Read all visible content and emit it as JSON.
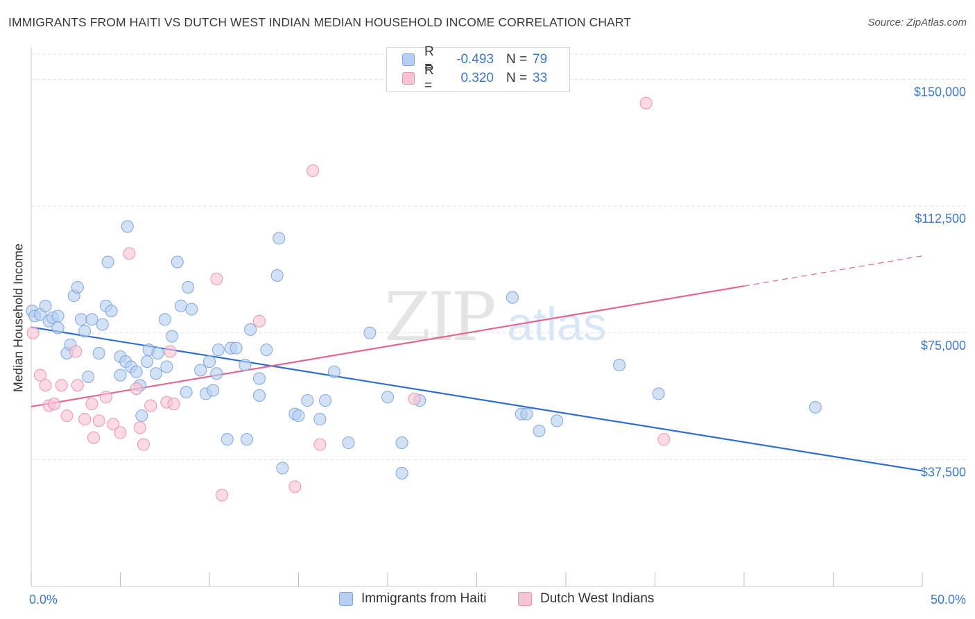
{
  "title": "IMMIGRANTS FROM HAITI VS DUTCH WEST INDIAN MEDIAN HOUSEHOLD INCOME CORRELATION CHART",
  "source": "Source: ZipAtlas.com",
  "watermark": {
    "zip": "ZIP",
    "atlas": "atlas"
  },
  "legend": {
    "rows": [
      {
        "r_label": "R =",
        "r_value": "-0.493",
        "n_label": "N =",
        "n_value": "79"
      },
      {
        "r_label": "R =",
        "r_value": "0.320",
        "n_label": "N =",
        "n_value": "33"
      }
    ]
  },
  "colors": {
    "blue_fill": "#b7cff0",
    "blue_stroke": "#7ea6de",
    "blue_line": "#2f6fcc",
    "pink_fill": "#f8c4d4",
    "pink_stroke": "#ec93b0",
    "pink_line": "#e26592",
    "tick_color": "#3f78c9",
    "grid": "#dcdcdc"
  },
  "chart_data": {
    "type": "scatter",
    "title": "IMMIGRANTS FROM HAITI VS DUTCH WEST INDIAN MEDIAN HOUSEHOLD INCOME CORRELATION CHART",
    "xlabel": "",
    "ylabel": "Median Household Income",
    "xlim": [
      0,
      50
    ],
    "ylim": [
      0,
      157500
    ],
    "x_tick_labels": [
      "0.0%",
      "50.0%"
    ],
    "y_ticks": [
      37500,
      75000,
      112500,
      150000
    ],
    "y_tick_labels": [
      "$37,500",
      "$75,000",
      "$112,500",
      "$150,000"
    ],
    "grid": true,
    "series": [
      {
        "name": "Immigrants from Haiti",
        "color": "blue",
        "trend": {
          "x0": 0,
          "y0": 76700,
          "x1": 50,
          "y1": 34200,
          "dashed_from": null
        },
        "points": [
          [
            0.05,
            81500
          ],
          [
            0.2,
            80000
          ],
          [
            0.5,
            80500
          ],
          [
            0.8,
            83000
          ],
          [
            1.0,
            78500
          ],
          [
            1.2,
            79500
          ],
          [
            1.5,
            80000
          ],
          [
            1.5,
            76500
          ],
          [
            2.0,
            69000
          ],
          [
            2.2,
            71500
          ],
          [
            2.4,
            86000
          ],
          [
            2.6,
            88500
          ],
          [
            2.8,
            79000
          ],
          [
            3.0,
            75500
          ],
          [
            3.2,
            62000
          ],
          [
            3.4,
            79000
          ],
          [
            3.8,
            69000
          ],
          [
            4.0,
            77500
          ],
          [
            4.2,
            83000
          ],
          [
            4.3,
            96000
          ],
          [
            4.5,
            81500
          ],
          [
            5.0,
            68000
          ],
          [
            5.0,
            62500
          ],
          [
            5.3,
            66500
          ],
          [
            5.4,
            106500
          ],
          [
            5.6,
            65000
          ],
          [
            5.9,
            63500
          ],
          [
            6.1,
            59500
          ],
          [
            6.2,
            50500
          ],
          [
            6.5,
            66500
          ],
          [
            6.6,
            70000
          ],
          [
            7.0,
            63000
          ],
          [
            7.1,
            69000
          ],
          [
            7.5,
            79000
          ],
          [
            7.6,
            65000
          ],
          [
            7.9,
            74000
          ],
          [
            8.2,
            96000
          ],
          [
            8.4,
            83000
          ],
          [
            8.7,
            57500
          ],
          [
            8.8,
            88500
          ],
          [
            9.0,
            82000
          ],
          [
            9.5,
            64000
          ],
          [
            9.8,
            57000
          ],
          [
            10.0,
            66500
          ],
          [
            10.2,
            58000
          ],
          [
            10.4,
            63000
          ],
          [
            10.5,
            70000
          ],
          [
            11.0,
            43500
          ],
          [
            11.2,
            70500
          ],
          [
            11.5,
            70500
          ],
          [
            12.0,
            65500
          ],
          [
            12.1,
            43500
          ],
          [
            12.3,
            76000
          ],
          [
            12.8,
            61500
          ],
          [
            12.8,
            56500
          ],
          [
            13.2,
            70000
          ],
          [
            13.8,
            92000
          ],
          [
            13.9,
            103000
          ],
          [
            14.1,
            35000
          ],
          [
            14.8,
            51000
          ],
          [
            15.0,
            50500
          ],
          [
            15.5,
            55000
          ],
          [
            16.2,
            49500
          ],
          [
            16.5,
            55000
          ],
          [
            17.0,
            63500
          ],
          [
            17.8,
            42500
          ],
          [
            19.0,
            75000
          ],
          [
            20.0,
            56000
          ],
          [
            20.8,
            42500
          ],
          [
            20.8,
            33500
          ],
          [
            21.8,
            55000
          ],
          [
            27.0,
            85500
          ],
          [
            27.5,
            51000
          ],
          [
            27.8,
            51000
          ],
          [
            28.5,
            46000
          ],
          [
            29.5,
            49000
          ],
          [
            33.0,
            65500
          ],
          [
            35.2,
            57000
          ],
          [
            44.0,
            53000
          ]
        ]
      },
      {
        "name": "Dutch West Indians",
        "color": "pink",
        "trend": {
          "x0": 0,
          "y0": 53200,
          "x1": 50,
          "y1": 97800,
          "dashed_from": 40
        },
        "points": [
          [
            0.1,
            75000
          ],
          [
            0.5,
            62500
          ],
          [
            0.8,
            59500
          ],
          [
            1.0,
            53500
          ],
          [
            1.3,
            54000
          ],
          [
            1.7,
            59500
          ],
          [
            2.0,
            50500
          ],
          [
            2.5,
            69500
          ],
          [
            2.6,
            59500
          ],
          [
            3.0,
            49500
          ],
          [
            3.4,
            54000
          ],
          [
            3.5,
            44000
          ],
          [
            3.8,
            49000
          ],
          [
            4.2,
            56000
          ],
          [
            4.6,
            48000
          ],
          [
            5.0,
            45500
          ],
          [
            5.5,
            98500
          ],
          [
            5.9,
            58500
          ],
          [
            6.1,
            47000
          ],
          [
            6.3,
            42000
          ],
          [
            6.7,
            53500
          ],
          [
            7.6,
            54500
          ],
          [
            7.8,
            69500
          ],
          [
            8.0,
            54000
          ],
          [
            10.4,
            91000
          ],
          [
            10.7,
            27000
          ],
          [
            12.8,
            78500
          ],
          [
            14.8,
            29500
          ],
          [
            15.8,
            123000
          ],
          [
            16.2,
            42000
          ],
          [
            21.5,
            55500
          ],
          [
            34.5,
            143000
          ],
          [
            35.5,
            43500
          ]
        ]
      }
    ]
  }
}
